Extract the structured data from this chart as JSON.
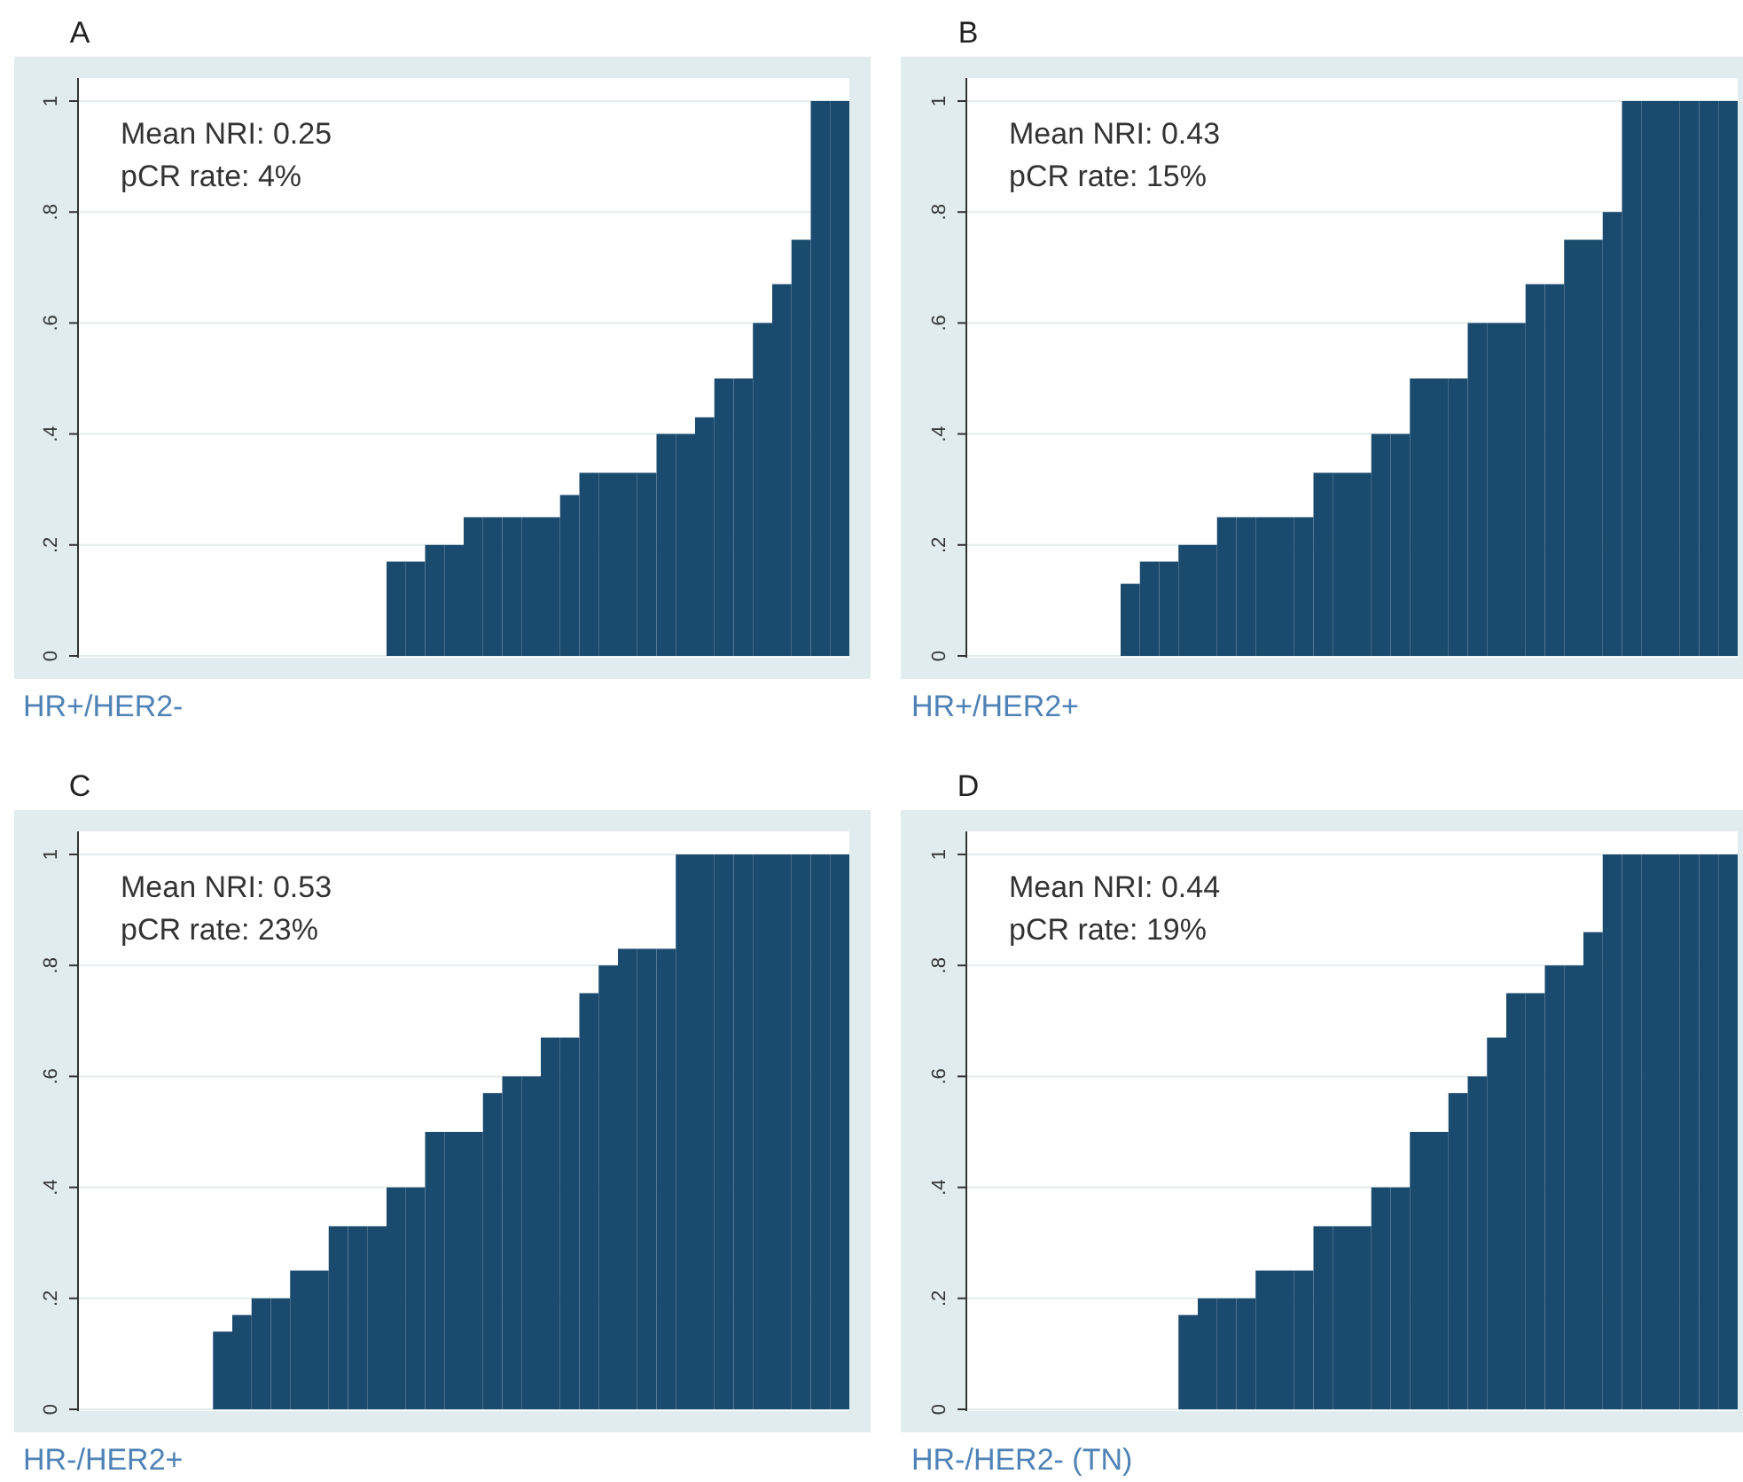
{
  "chart_data": [
    {
      "type": "bar",
      "title": "A",
      "subtitle": "HR+/HER2-",
      "annotations": [
        "Mean NRI: 0.25",
        "pCR rate: 4%"
      ],
      "categories": [
        null,
        null,
        null,
        null,
        null,
        null,
        null,
        null,
        null,
        null,
        null,
        null,
        null,
        null,
        null,
        null,
        null,
        null,
        null,
        null,
        null,
        null,
        null,
        null,
        null,
        null,
        null,
        null,
        null,
        null,
        null,
        null,
        null,
        null,
        null,
        null,
        null,
        null,
        null,
        null
      ],
      "color": "#1a4a6e",
      "values": [
        0,
        0,
        0,
        0,
        0,
        0,
        0,
        0,
        0,
        0,
        0,
        0,
        0,
        0,
        0,
        0,
        0.17,
        0.17,
        0.2,
        0.2,
        0.25,
        0.25,
        0.25,
        0.25,
        0.25,
        0.29,
        0.33,
        0.33,
        0.33,
        0.33,
        0.4,
        0.4,
        0.43,
        0.5,
        0.5,
        0.6,
        0.67,
        0.75,
        1,
        1
      ],
      "ylim": [
        0,
        1
      ],
      "yticks": [
        {
          "value": 0,
          "label": "0"
        },
        {
          "value": 0.2,
          "label": ".2"
        },
        {
          "value": 0.4,
          "label": ".4"
        },
        {
          "value": 0.6,
          "label": ".6"
        },
        {
          "value": 0.8,
          "label": ".8"
        },
        {
          "value": 1,
          "label": "1"
        }
      ],
      "grid": "y",
      "tick_labels": "y"
    },
    {
      "type": "bar",
      "title": "B",
      "subtitle": "HR+/HER2+",
      "annotations": [
        "Mean NRI: 0.43",
        "pCR rate: 15%"
      ],
      "categories": [
        null,
        null,
        null,
        null,
        null,
        null,
        null,
        null,
        null,
        null,
        null,
        null,
        null,
        null,
        null,
        null,
        null,
        null,
        null,
        null,
        null,
        null,
        null,
        null,
        null,
        null,
        null,
        null,
        null,
        null,
        null,
        null,
        null,
        null,
        null,
        null,
        null,
        null,
        null,
        null
      ],
      "color": "#1a4a6e",
      "values": [
        0,
        0,
        0,
        0,
        0,
        0,
        0,
        0,
        0.13,
        0.17,
        0.17,
        0.2,
        0.2,
        0.25,
        0.25,
        0.25,
        0.25,
        0.25,
        0.33,
        0.33,
        0.33,
        0.4,
        0.4,
        0.5,
        0.5,
        0.5,
        0.6,
        0.6,
        0.6,
        0.67,
        0.67,
        0.75,
        0.75,
        0.8,
        1,
        1,
        1,
        1,
        1,
        1
      ],
      "ylim": [
        0,
        1
      ],
      "yticks": [
        {
          "value": 0,
          "label": "0"
        },
        {
          "value": 0.2,
          "label": ".2"
        },
        {
          "value": 0.4,
          "label": ".4"
        },
        {
          "value": 0.6,
          "label": ".6"
        },
        {
          "value": 0.8,
          "label": ".8"
        },
        {
          "value": 1,
          "label": "1"
        }
      ],
      "grid": "y",
      "tick_labels": "y"
    },
    {
      "type": "bar",
      "title": "C",
      "subtitle": "HR-/HER2+",
      "annotations": [
        "Mean NRI: 0.53",
        "pCR rate: 23%"
      ],
      "categories": [
        null,
        null,
        null,
        null,
        null,
        null,
        null,
        null,
        null,
        null,
        null,
        null,
        null,
        null,
        null,
        null,
        null,
        null,
        null,
        null,
        null,
        null,
        null,
        null,
        null,
        null,
        null,
        null,
        null,
        null,
        null,
        null,
        null,
        null,
        null,
        null,
        null,
        null,
        null,
        null
      ],
      "color": "#1a4a6e",
      "values": [
        0,
        0,
        0,
        0,
        0,
        0,
        0,
        0.14,
        0.17,
        0.2,
        0.2,
        0.25,
        0.25,
        0.33,
        0.33,
        0.33,
        0.4,
        0.4,
        0.5,
        0.5,
        0.5,
        0.57,
        0.6,
        0.6,
        0.67,
        0.67,
        0.75,
        0.8,
        0.83,
        0.83,
        0.83,
        1,
        1,
        1,
        1,
        1,
        1,
        1,
        1,
        1
      ],
      "ylim": [
        0,
        1
      ],
      "yticks": [
        {
          "value": 0,
          "label": "0"
        },
        {
          "value": 0.2,
          "label": ".2"
        },
        {
          "value": 0.4,
          "label": ".4"
        },
        {
          "value": 0.6,
          "label": ".6"
        },
        {
          "value": 0.8,
          "label": ".8"
        },
        {
          "value": 1,
          "label": "1"
        }
      ],
      "grid": "y",
      "tick_labels": "y"
    },
    {
      "type": "bar",
      "title": "D",
      "subtitle": "HR-/HER2- (TN)",
      "annotations": [
        "Mean NRI: 0.44",
        "pCR rate: 19%"
      ],
      "categories": [
        null,
        null,
        null,
        null,
        null,
        null,
        null,
        null,
        null,
        null,
        null,
        null,
        null,
        null,
        null,
        null,
        null,
        null,
        null,
        null,
        null,
        null,
        null,
        null,
        null,
        null,
        null,
        null,
        null,
        null,
        null,
        null,
        null,
        null,
        null,
        null,
        null,
        null,
        null,
        null
      ],
      "color": "#1a4a6e",
      "values": [
        0,
        0,
        0,
        0,
        0,
        0,
        0,
        0,
        0,
        0,
        0,
        0.17,
        0.2,
        0.2,
        0.2,
        0.25,
        0.25,
        0.25,
        0.33,
        0.33,
        0.33,
        0.4,
        0.4,
        0.5,
        0.5,
        0.57,
        0.6,
        0.67,
        0.75,
        0.75,
        0.8,
        0.8,
        0.86,
        1,
        1,
        1,
        1,
        1,
        1,
        1
      ],
      "ylim": [
        0,
        1
      ],
      "yticks": [
        {
          "value": 0,
          "label": "0"
        },
        {
          "value": 0.2,
          "label": ".2"
        },
        {
          "value": 0.4,
          "label": ".4"
        },
        {
          "value": 0.6,
          "label": ".6"
        },
        {
          "value": 0.8,
          "label": ".8"
        },
        {
          "value": 1,
          "label": "1"
        }
      ],
      "grid": "y",
      "tick_labels": "y"
    }
  ]
}
